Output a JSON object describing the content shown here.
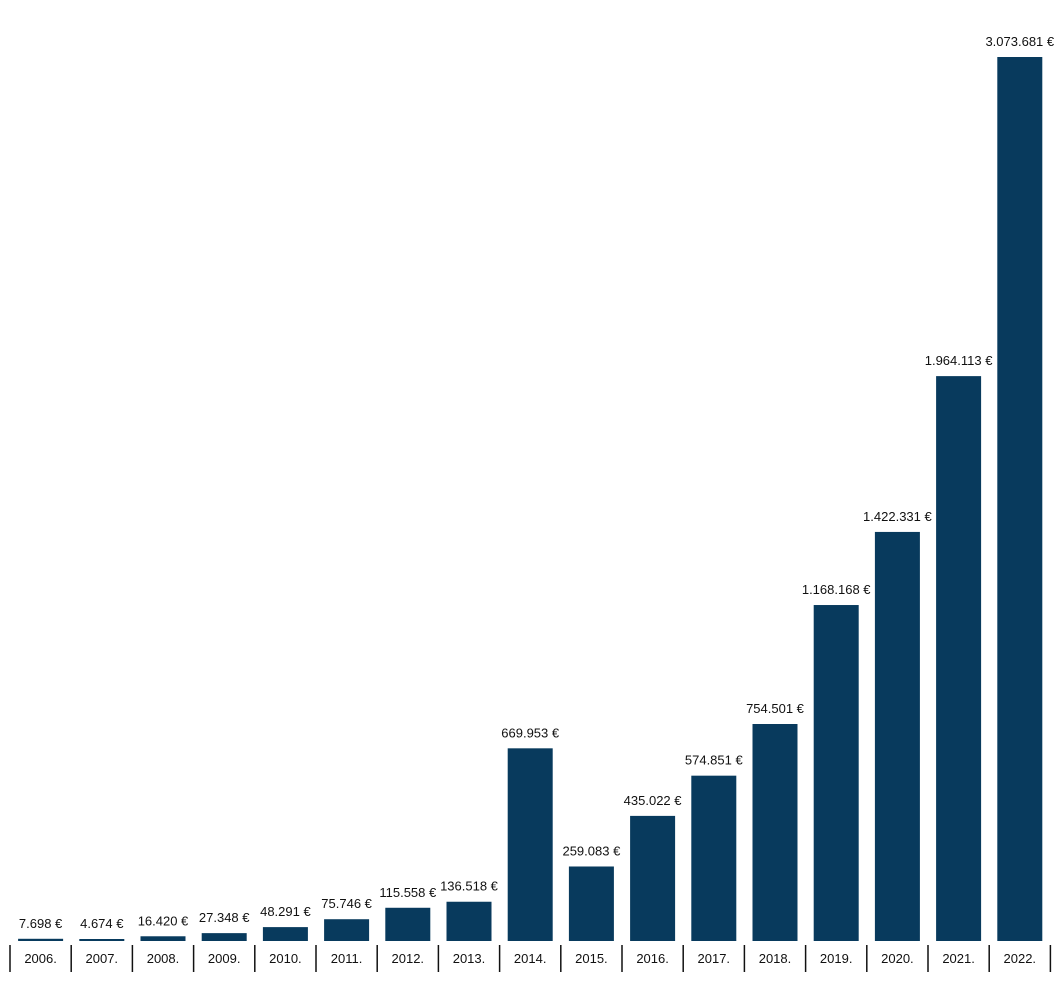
{
  "chart_data": {
    "type": "bar",
    "title": "",
    "xlabel": "",
    "ylabel": "",
    "categories": [
      "2006.",
      "2007.",
      "2008.",
      "2009.",
      "2010.",
      "2011.",
      "2012.",
      "2013.",
      "2014.",
      "2015.",
      "2016.",
      "2017.",
      "2018.",
      "2019.",
      "2020.",
      "2021.",
      "2022."
    ],
    "values": [
      7698,
      4674,
      16420,
      27348,
      48291,
      75746,
      115558,
      136518,
      669953,
      259083,
      435022,
      574851,
      754501,
      1168168,
      1422331,
      1964113,
      3073681
    ],
    "value_labels": [
      "7.698 €",
      "4.674 €",
      "16.420 €",
      "27.348 €",
      "48.291 €",
      "75.746 €",
      "115.558 €",
      "136.518 €",
      "669.953 €",
      "259.083 €",
      "435.022 €",
      "574.851 €",
      "754.501 €",
      "1.168.168 €",
      "1.422.331 €",
      "1.964.113 €",
      "3.073.681 €"
    ],
    "ylim": [
      0,
      3073681
    ],
    "grid": false,
    "legend": "none",
    "bar_color": "#083a5d",
    "axis_color": "#111111"
  }
}
